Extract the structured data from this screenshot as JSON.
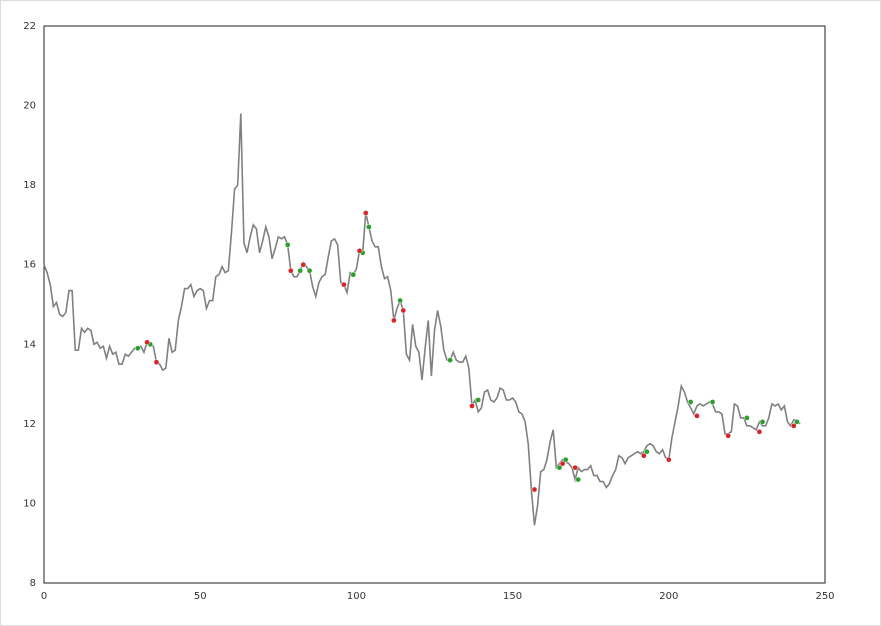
{
  "chart_data": {
    "type": "line",
    "xlim": [
      0,
      250
    ],
    "xticks": [
      0,
      50,
      100,
      150,
      200,
      250
    ],
    "ylim": [
      8,
      22
    ],
    "yticks": [
      8,
      10,
      12,
      14,
      16,
      18,
      20,
      22
    ],
    "grid": false,
    "x": [
      0,
      1,
      2,
      3,
      4,
      5,
      6,
      7,
      8,
      9,
      10,
      11,
      12,
      13,
      14,
      15,
      16,
      17,
      18,
      19,
      20,
      21,
      22,
      23,
      24,
      25,
      26,
      27,
      28,
      29,
      30,
      31,
      32,
      33,
      34,
      35,
      36,
      37,
      38,
      39,
      40,
      41,
      42,
      43,
      44,
      45,
      46,
      47,
      48,
      49,
      50,
      51,
      52,
      53,
      54,
      55,
      56,
      57,
      58,
      59,
      60,
      61,
      62,
      63,
      64,
      65,
      66,
      67,
      68,
      69,
      70,
      71,
      72,
      73,
      74,
      75,
      76,
      77,
      78,
      79,
      80,
      81,
      82,
      83,
      84,
      85,
      86,
      87,
      88,
      89,
      90,
      91,
      92,
      93,
      94,
      95,
      96,
      97,
      98,
      99,
      100,
      101,
      102,
      103,
      104,
      105,
      106,
      107,
      108,
      109,
      110,
      111,
      112,
      113,
      114,
      115,
      116,
      117,
      118,
      119,
      120,
      121,
      122,
      123,
      124,
      125,
      126,
      127,
      128,
      129,
      130,
      131,
      132,
      133,
      134,
      135,
      136,
      137,
      138,
      139,
      140,
      141,
      142,
      143,
      144,
      145,
      146,
      147,
      148,
      149,
      150,
      151,
      152,
      153,
      154,
      155,
      156,
      157,
      158,
      159,
      160,
      161,
      162,
      163,
      164,
      165,
      166,
      167,
      168,
      169,
      170,
      171,
      172,
      173,
      174,
      175,
      176,
      177,
      178,
      179,
      180,
      181,
      182,
      183,
      184,
      185,
      186,
      187,
      188,
      189,
      190,
      191,
      192,
      193,
      194,
      195,
      196,
      197,
      198,
      199,
      200,
      201,
      202,
      203,
      204,
      205,
      206,
      207,
      208,
      209,
      210,
      211,
      212,
      213,
      214,
      215,
      216,
      217,
      218,
      219,
      220,
      221,
      222,
      223,
      224,
      225,
      226,
      227,
      228,
      229,
      230,
      231,
      232,
      233,
      234,
      235,
      236,
      237,
      238,
      239,
      240,
      241,
      242
    ],
    "series": [
      {
        "color": "#808080",
        "values": [
          16.0,
          15.8,
          15.5,
          14.95,
          15.05,
          14.75,
          14.7,
          14.8,
          15.35,
          15.35,
          13.85,
          13.85,
          14.4,
          14.3,
          14.4,
          14.35,
          14.0,
          14.05,
          13.9,
          13.95,
          13.65,
          13.95,
          13.75,
          13.8,
          13.5,
          13.5,
          13.75,
          13.7,
          13.8,
          13.9,
          13.9,
          13.95,
          13.8,
          14.05,
          14.0,
          13.95,
          13.55,
          13.5,
          13.35,
          13.4,
          14.15,
          13.8,
          13.85,
          14.6,
          14.95,
          15.4,
          15.4,
          15.5,
          15.2,
          15.35,
          15.4,
          15.35,
          14.9,
          15.1,
          15.1,
          15.7,
          15.75,
          15.95,
          15.8,
          15.85,
          16.8,
          17.9,
          18.0,
          19.8,
          16.55,
          16.3,
          16.7,
          17.0,
          16.9,
          16.3,
          16.6,
          16.95,
          16.7,
          16.15,
          16.4,
          16.7,
          16.65,
          16.7,
          16.5,
          15.85,
          15.7,
          15.7,
          15.85,
          16.05,
          15.95,
          15.85,
          15.45,
          15.2,
          15.55,
          15.7,
          15.75,
          16.2,
          16.6,
          16.65,
          16.5,
          15.55,
          15.5,
          15.3,
          15.8,
          15.75,
          15.9,
          16.35,
          16.3,
          17.3,
          16.95,
          16.6,
          16.45,
          16.45,
          15.95,
          15.65,
          15.7,
          15.35,
          14.6,
          14.9,
          15.1,
          14.85,
          13.75,
          13.6,
          14.5,
          13.95,
          13.8,
          13.1,
          13.9,
          14.6,
          13.2,
          14.35,
          14.85,
          14.45,
          13.85,
          13.6,
          13.6,
          13.8,
          13.6,
          13.55,
          13.55,
          13.7,
          13.4,
          12.45,
          12.6,
          12.3,
          12.4,
          12.8,
          12.85,
          12.6,
          12.55,
          12.65,
          12.9,
          12.85,
          12.6,
          12.6,
          12.65,
          12.55,
          12.3,
          12.25,
          12.05,
          11.5,
          10.35,
          9.45,
          9.95,
          10.8,
          10.85,
          11.1,
          11.55,
          11.85,
          10.9,
          11.0,
          11.1,
          11.05,
          11.0,
          10.9,
          10.6,
          10.9,
          10.8,
          10.85,
          10.85,
          10.95,
          10.7,
          10.7,
          10.55,
          10.55,
          10.4,
          10.5,
          10.7,
          10.85,
          11.2,
          11.15,
          11.0,
          11.15,
          11.2,
          11.25,
          11.3,
          11.25,
          11.3,
          11.45,
          11.5,
          11.45,
          11.3,
          11.25,
          11.35,
          11.15,
          11.1,
          11.65,
          12.05,
          12.45,
          12.95,
          12.8,
          12.55,
          12.4,
          12.25,
          12.45,
          12.5,
          12.45,
          12.5,
          12.55,
          12.5,
          12.3,
          12.3,
          12.25,
          11.75,
          11.75,
          11.8,
          12.5,
          12.45,
          12.15,
          12.15,
          11.95,
          11.95,
          11.9,
          11.85,
          12.05,
          11.95,
          11.95,
          12.15,
          12.5,
          12.45,
          12.5,
          12.35,
          12.45,
          12.05,
          11.95,
          12.1,
          12.1,
          12.0
        ]
      },
      {
        "type": "scatter",
        "color": "#2ca02c",
        "x": [
          30,
          34,
          78,
          82,
          85,
          99,
          102,
          104,
          114,
          130,
          139,
          165,
          167,
          171,
          193,
          207,
          214,
          225,
          230,
          241
        ],
        "values": [
          13.9,
          14.0,
          16.5,
          15.85,
          15.85,
          15.75,
          16.3,
          16.95,
          15.1,
          13.6,
          12.6,
          10.9,
          11.1,
          10.6,
          11.3,
          12.55,
          12.55,
          12.15,
          12.05,
          12.05
        ]
      },
      {
        "type": "scatter",
        "color": "#d62728",
        "x": [
          33,
          36,
          79,
          83,
          96,
          101,
          103,
          112,
          115,
          137,
          157,
          166,
          170,
          192,
          200,
          209,
          219,
          229,
          240
        ],
        "values": [
          14.05,
          13.55,
          15.85,
          16.0,
          15.5,
          16.35,
          17.3,
          14.6,
          14.85,
          12.45,
          10.35,
          11.0,
          10.9,
          11.2,
          11.1,
          12.2,
          11.7,
          11.8,
          11.95
        ]
      }
    ]
  }
}
